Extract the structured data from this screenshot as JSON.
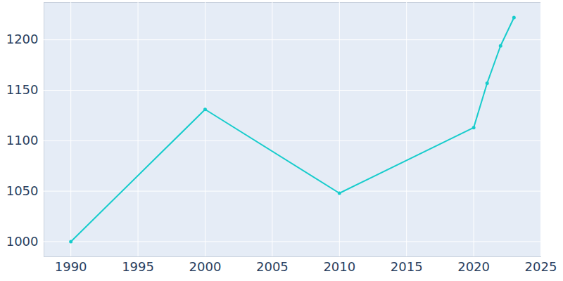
{
  "chart_data": {
    "type": "line",
    "x": [
      1990,
      2000,
      2010,
      2020,
      2021,
      2022,
      2023
    ],
    "values": [
      1000,
      1131,
      1048,
      1113,
      1157,
      1194,
      1222
    ],
    "color": "#17cccc",
    "marker": "circle",
    "xlim": [
      1988,
      2025
    ],
    "xticks": [
      1990,
      1995,
      2000,
      2005,
      2010,
      2015,
      2020,
      2025
    ],
    "ylim": [
      985,
      1237
    ],
    "yticks": [
      1000,
      1050,
      1100,
      1150,
      1200
    ],
    "grid": true
  }
}
